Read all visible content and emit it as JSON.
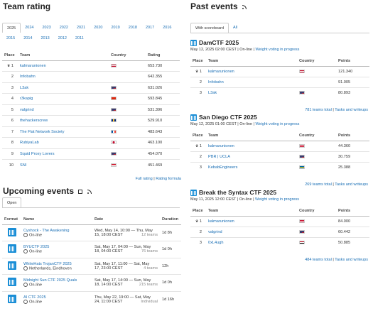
{
  "team_rating": {
    "title": "Team rating",
    "years_row1": [
      "2025",
      "2024",
      "2023",
      "2022",
      "2021",
      "2020",
      "2019",
      "2018",
      "2017",
      "2016"
    ],
    "years_row2": [
      "2015",
      "2014",
      "2013",
      "2012",
      "2011"
    ],
    "columns": {
      "place": "Place",
      "team": "Team",
      "country": "Country",
      "rating": "Rating"
    },
    "rows": [
      {
        "place": "1",
        "team": "kalmarunionen",
        "rating": "653.730",
        "flag": "dk"
      },
      {
        "place": "2",
        "team": "Infobahn",
        "rating": "642.355",
        "flag": ""
      },
      {
        "place": "3",
        "team": "L3ak",
        "rating": "631.026",
        "flag": "us"
      },
      {
        "place": "4",
        "team": "r3kapig",
        "rating": "593.845",
        "flag": "cn"
      },
      {
        "place": "5",
        "team": "valgrind",
        "rating": "531.396",
        "flag": "us"
      },
      {
        "place": "6",
        "team": "thehackerscrew",
        "rating": "529.910",
        "flag": "bb"
      },
      {
        "place": "7",
        "team": "The Flat Network Society",
        "rating": "483.643",
        "flag": "fr"
      },
      {
        "place": "8",
        "team": "RubiyaLab",
        "rating": "463.100",
        "flag": "kr"
      },
      {
        "place": "9",
        "team": "Squid Proxy Lovers",
        "rating": "454.070",
        "flag": "us"
      },
      {
        "place": "10",
        "team": "SNI",
        "rating": "451.469",
        "flag": "id"
      }
    ],
    "full_rating": "Full rating",
    "separator": "|",
    "rating_formula": "Rating formula"
  },
  "upcoming": {
    "title": "Upcoming events",
    "tab_open": "Open",
    "columns": {
      "format": "Format",
      "name": "Name",
      "date": "Date",
      "duration": "Duration"
    },
    "rows": [
      {
        "name": "Cyshock - The Awakening",
        "loc": "On-line",
        "date1": "Wed, May 14, 10:00 — Thu, May",
        "date2": "15, 18:00 CEST",
        "teams": "12 teams",
        "dur": "1d 8h"
      },
      {
        "name": "BYUCTF 2025",
        "loc": "On-line",
        "date1": "Sat, May 17, 04:00 — Sun, May",
        "date2": "18, 04:00 CEST",
        "teams": "76 teams",
        "dur": "1d 0h"
      },
      {
        "name": "WhiteHats TrojanCTF 2025",
        "loc": "Netherlands, Eindhoven",
        "date1": "Sat, May 17, 11:00 — Sat, May",
        "date2": "17, 23:00 CEST",
        "teams": "4 teams",
        "dur": "12h"
      },
      {
        "name": "Midnight Sun CTF 2025 Quals",
        "loc": "On-line",
        "date1": "Sat, May 17, 14:00 — Sun, May",
        "date2": "18, 14:00 CEST",
        "teams": "215 teams",
        "dur": "1d 0h"
      },
      {
        "name": "AI CTF 2025",
        "loc": "On-line",
        "date1": "Thu, May 22, 19:00 — Sat, May",
        "date2": "24, 11:00 CEST",
        "teams": "Individual",
        "dur": "1d 16h"
      }
    ]
  },
  "past": {
    "title": "Past events",
    "tab_scoreboard": "With scoreboard",
    "tab_all": "All",
    "columns": {
      "place": "Place",
      "team": "Team",
      "country": "Country",
      "points": "Points"
    },
    "events": [
      {
        "name": "DamCTF 2025",
        "date": "May 12, 2025 02:00 CEST",
        "online": "On-line",
        "vote": "Weight voting in progress",
        "rows": [
          {
            "place": "1",
            "team": "kalmarunionen",
            "points": "121.340",
            "flag": "dk"
          },
          {
            "place": "2",
            "team": "Infobahn",
            "points": "91.005",
            "flag": ""
          },
          {
            "place": "3",
            "team": "L3ak",
            "points": "80.893",
            "flag": "us"
          }
        ],
        "total": "781 teams total",
        "tasks": "Tasks and writeups"
      },
      {
        "name": "San Diego CTF 2025",
        "date": "May 12, 2025 01:00 CEST",
        "online": "On-line",
        "vote": "Weight voting in progress",
        "rows": [
          {
            "place": "1",
            "team": "kalmarunionen",
            "points": "44.360",
            "flag": "dk"
          },
          {
            "place": "2",
            "team": "PBR | UCLA",
            "points": "30.759",
            "flag": "us"
          },
          {
            "place": "3",
            "team": "KebabEngineers",
            "points": "25.388",
            "flag": "se"
          }
        ],
        "total": "269 teams total",
        "tasks": "Tasks and writeups"
      },
      {
        "name": "Break the Syntax CTF 2025",
        "date": "May 11, 2025 12:00 CEST",
        "online": "On-line",
        "vote": "Weight voting in progress",
        "rows": [
          {
            "place": "1",
            "team": "kalmarunionen",
            "points": "84.000",
            "flag": "dk"
          },
          {
            "place": "2",
            "team": "valgrind",
            "points": "60.442",
            "flag": "us"
          },
          {
            "place": "3",
            "team": "0xL4ugh",
            "points": "50.885",
            "flag": "eg"
          }
        ],
        "total": "484 teams total",
        "tasks": "Tasks and writeups"
      }
    ],
    "sep": "|"
  },
  "colors": {
    "link": "#1a6fb5",
    "accent": "#1a8ed6"
  }
}
